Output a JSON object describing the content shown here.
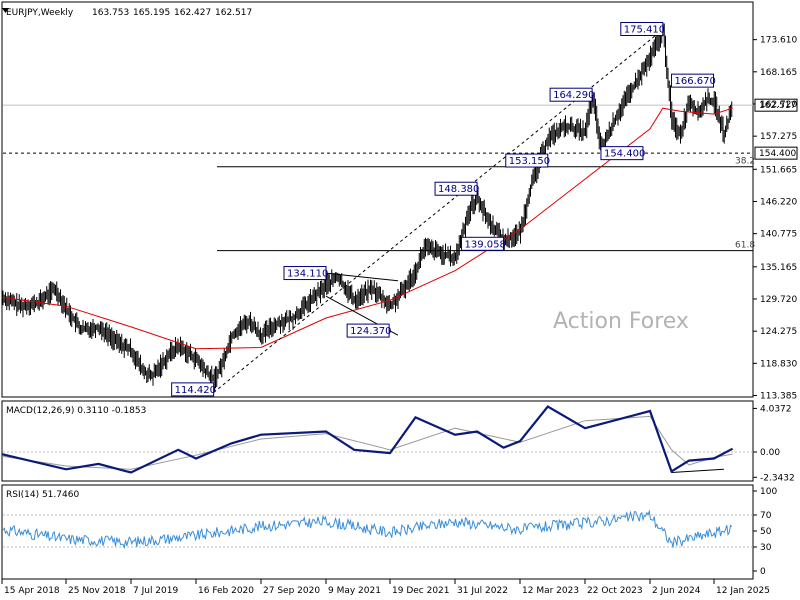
{
  "chart_data": [
    {
      "type": "line",
      "panel": "price",
      "title": "EURJPY,Weekly",
      "header_values": [
        "163.753",
        "165.195",
        "162.427",
        "162.517"
      ],
      "ylim": [
        113.385,
        178.5
      ],
      "y_ticks": [
        "173.610",
        "168.165",
        "162.720",
        "157.275",
        "151.665",
        "146.220",
        "140.775",
        "135.165",
        "129.720",
        "124.275",
        "118.830",
        "113.385"
      ],
      "x_ticks": [
        "15 Apr 2018",
        "25 Nov 2018",
        "7 Jul 2019",
        "16 Feb 2020",
        "27 Sep 2020",
        "9 May 2021",
        "19 Dec 2021",
        "31 Jul 2022",
        "12 Mar 2023",
        "22 Oct 2023",
        "2 Jun 2024",
        "12 Jan 2025"
      ],
      "current_price": "162.517",
      "support_level": "154.400",
      "fib_levels": [
        {
          "label": "38.2",
          "value": 152.1
        },
        {
          "label": "61.8",
          "value": 137.9
        }
      ],
      "callouts": [
        "175.410",
        "166.670",
        "164.290",
        "154.400",
        "153.150",
        "148.380",
        "139.058",
        "134.110",
        "124.370",
        "114.420"
      ],
      "series": [
        {
          "name": "price",
          "color": "#000000",
          "points": [
            [
              "15 Apr 2018",
              130.0
            ],
            [
              "Jun 2018",
              128.5
            ],
            [
              "Aug 2018",
              129.0
            ],
            [
              "Oct 2018",
              131.5
            ],
            [
              "25 Nov 2018",
              128.0
            ],
            [
              "Jan 2019",
              124.5
            ],
            [
              "Mar 2019",
              125.0
            ],
            [
              "May 2019",
              122.5
            ],
            [
              "7 Jul 2019",
              121.0
            ],
            [
              "Aug 2019",
              117.5
            ],
            [
              "Sep 2019",
              116.5
            ],
            [
              "Nov 2019",
              120.5
            ],
            [
              "Dec 2019",
              121.8
            ],
            [
              "16 Feb 2020",
              119.5
            ],
            [
              "Mar 2020",
              117.5
            ],
            [
              "Apr 2020",
              116.0
            ],
            [
              "May 2020",
              119.0
            ],
            [
              "Jun 2020",
              123.5
            ],
            [
              "Jul 2020",
              125.0
            ],
            [
              "Aug 2020",
              126.0
            ],
            [
              "27 Sep 2020",
              123.5
            ],
            [
              "Nov 2020",
              125.5
            ],
            [
              "Jan 2021",
              126.5
            ],
            [
              "Mar 2021",
              129.5
            ],
            [
              "9 May 2021",
              132.0
            ],
            [
              "Jun 2021",
              133.5
            ],
            [
              "Aug 2021",
              129.5
            ],
            [
              "Oct 2021",
              131.5
            ],
            [
              "19 Dec 2021",
              128.5
            ],
            [
              "Jan 2022",
              130.0
            ],
            [
              "Mar 2022",
              134.5
            ],
            [
              "Apr 2022",
              138.5
            ],
            [
              "31 Jul 2022",
              136.5
            ],
            [
              "Sep 2022",
              144.5
            ],
            [
              "Oct 2022",
              147.0
            ],
            [
              "Nov 2022",
              143.5
            ],
            [
              "Jan 2023",
              139.5
            ],
            [
              "12 Mar 2023",
              141.0
            ],
            [
              "Apr 2023",
              148.5
            ],
            [
              "Jun 2023",
              157.0
            ],
            [
              "Aug 2023",
              159.0
            ],
            [
              "22 Oct 2023",
              158.0
            ],
            [
              "Nov 2023",
              164.0
            ],
            [
              "Dec 2023",
              155.0
            ],
            [
              "Feb 2024",
              161.5
            ],
            [
              "Apr 2024",
              166.5
            ],
            [
              "2 Jun 2024",
              170.5
            ],
            [
              "Jul 2024",
              175.2
            ],
            [
              "Aug 2024",
              160.0
            ],
            [
              "Sep 2024",
              157.5
            ],
            [
              "Oct 2024",
              163.5
            ],
            [
              "Nov 2024",
              161.0
            ],
            [
              "Dec 2024",
              163.5
            ],
            [
              "12 Jan 2025",
              163.0
            ],
            [
              "Feb 2025",
              157.5
            ],
            [
              "Mar 2025",
              162.5
            ]
          ]
        },
        {
          "name": "ma",
          "color": "#e00000",
          "points": [
            [
              "15 Apr 2018",
              130.0
            ],
            [
              "25 Nov 2018",
              128.5
            ],
            [
              "7 Jul 2019",
              125.0
            ],
            [
              "16 Feb 2020",
              121.3
            ],
            [
              "27 Sep 2020",
              121.5
            ],
            [
              "9 May 2021",
              126.5
            ],
            [
              "19 Dec 2021",
              129.5
            ],
            [
              "31 Jul 2022",
              134.5
            ],
            [
              "12 Mar 2023",
              141.5
            ],
            [
              "22 Oct 2023",
              150.0
            ],
            [
              "2 Jun 2024",
              158.5
            ],
            [
              "Jul 2024",
              162.0
            ],
            [
              "Sep 2024",
              161.5
            ],
            [
              "12 Jan 2025",
              161.0
            ],
            [
              "Mar 2025",
              162.0
            ]
          ]
        }
      ]
    },
    {
      "type": "line",
      "panel": "macd",
      "title": "MACD(12,26,9) 0.3110 -0.1853",
      "y_ticks": [
        "4.0372",
        "0.00",
        "-2.3432"
      ],
      "ylim": [
        -3.2,
        4.8
      ],
      "series": [
        {
          "name": "macd",
          "color": "#0a1a7a",
          "points": [
            [
              "15 Apr 2018",
              -0.2
            ],
            [
              "25 Nov 2018",
              -1.6
            ],
            [
              "Mar 2019",
              -1.1
            ],
            [
              "7 Jul 2019",
              -1.9
            ],
            [
              "Dec 2019",
              0.2
            ],
            [
              "16 Feb 2020",
              -0.6
            ],
            [
              "Jun 2020",
              0.8
            ],
            [
              "27 Sep 2020",
              1.6
            ],
            [
              "9 May 2021",
              1.9
            ],
            [
              "Aug 2021",
              0.2
            ],
            [
              "19 Dec 2021",
              -0.1
            ],
            [
              "Mar 2022",
              3.2
            ],
            [
              "31 Jul 2022",
              1.6
            ],
            [
              "Oct 2022",
              1.9
            ],
            [
              "Jan 2023",
              0.4
            ],
            [
              "12 Mar 2023",
              1.0
            ],
            [
              "Jun 2023",
              4.2
            ],
            [
              "22 Oct 2023",
              2.2
            ],
            [
              "2 Jun 2024",
              3.8
            ],
            [
              "Aug 2024",
              -1.8
            ],
            [
              "Oct 2024",
              -0.8
            ],
            [
              "12 Jan 2025",
              -0.6
            ],
            [
              "Mar 2025",
              0.31
            ]
          ]
        },
        {
          "name": "signal",
          "color": "#999999",
          "points": [
            [
              "15 Apr 2018",
              -0.4
            ],
            [
              "25 Nov 2018",
              -1.3
            ],
            [
              "7 Jul 2019",
              -1.6
            ],
            [
              "16 Feb 2020",
              -0.3
            ],
            [
              "27 Sep 2020",
              1.2
            ],
            [
              "9 May 2021",
              1.7
            ],
            [
              "19 Dec 2021",
              0.2
            ],
            [
              "31 Jul 2022",
              2.2
            ],
            [
              "12 Mar 2023",
              0.9
            ],
            [
              "22 Oct 2023",
              2.9
            ],
            [
              "2 Jun 2024",
              3.3
            ],
            [
              "Aug 2024",
              0.2
            ],
            [
              "Oct 2024",
              -1.2
            ],
            [
              "12 Jan 2025",
              -0.5
            ],
            [
              "Mar 2025",
              -0.19
            ]
          ]
        }
      ]
    },
    {
      "type": "line",
      "panel": "rsi",
      "title": "RSI(14) 51.7460",
      "y_ticks": [
        "100",
        "70",
        "50",
        "30",
        "0"
      ],
      "ylim": [
        0,
        100
      ],
      "levels": [
        70,
        30
      ],
      "series": [
        {
          "name": "rsi",
          "color": "#3a8ed8",
          "points": [
            [
              "15 Apr 2018",
              52
            ],
            [
              "25 Nov 2018",
              40
            ],
            [
              "7 Jul 2019",
              36
            ],
            [
              "16 Feb 2020",
              44
            ],
            [
              "27 Sep 2020",
              56
            ],
            [
              "9 May 2021",
              62
            ],
            [
              "19 Dec 2021",
              48
            ],
            [
              "31 Jul 2022",
              62
            ],
            [
              "12 Mar 2023",
              52
            ],
            [
              "22 Oct 2023",
              60
            ],
            [
              "2 Jun 2024",
              70
            ],
            [
              "Aug 2024",
              35
            ],
            [
              "12 Jan 2025",
              48
            ],
            [
              "Mar 2025",
              51.7
            ]
          ]
        }
      ]
    }
  ],
  "watermark": "Action Forex"
}
